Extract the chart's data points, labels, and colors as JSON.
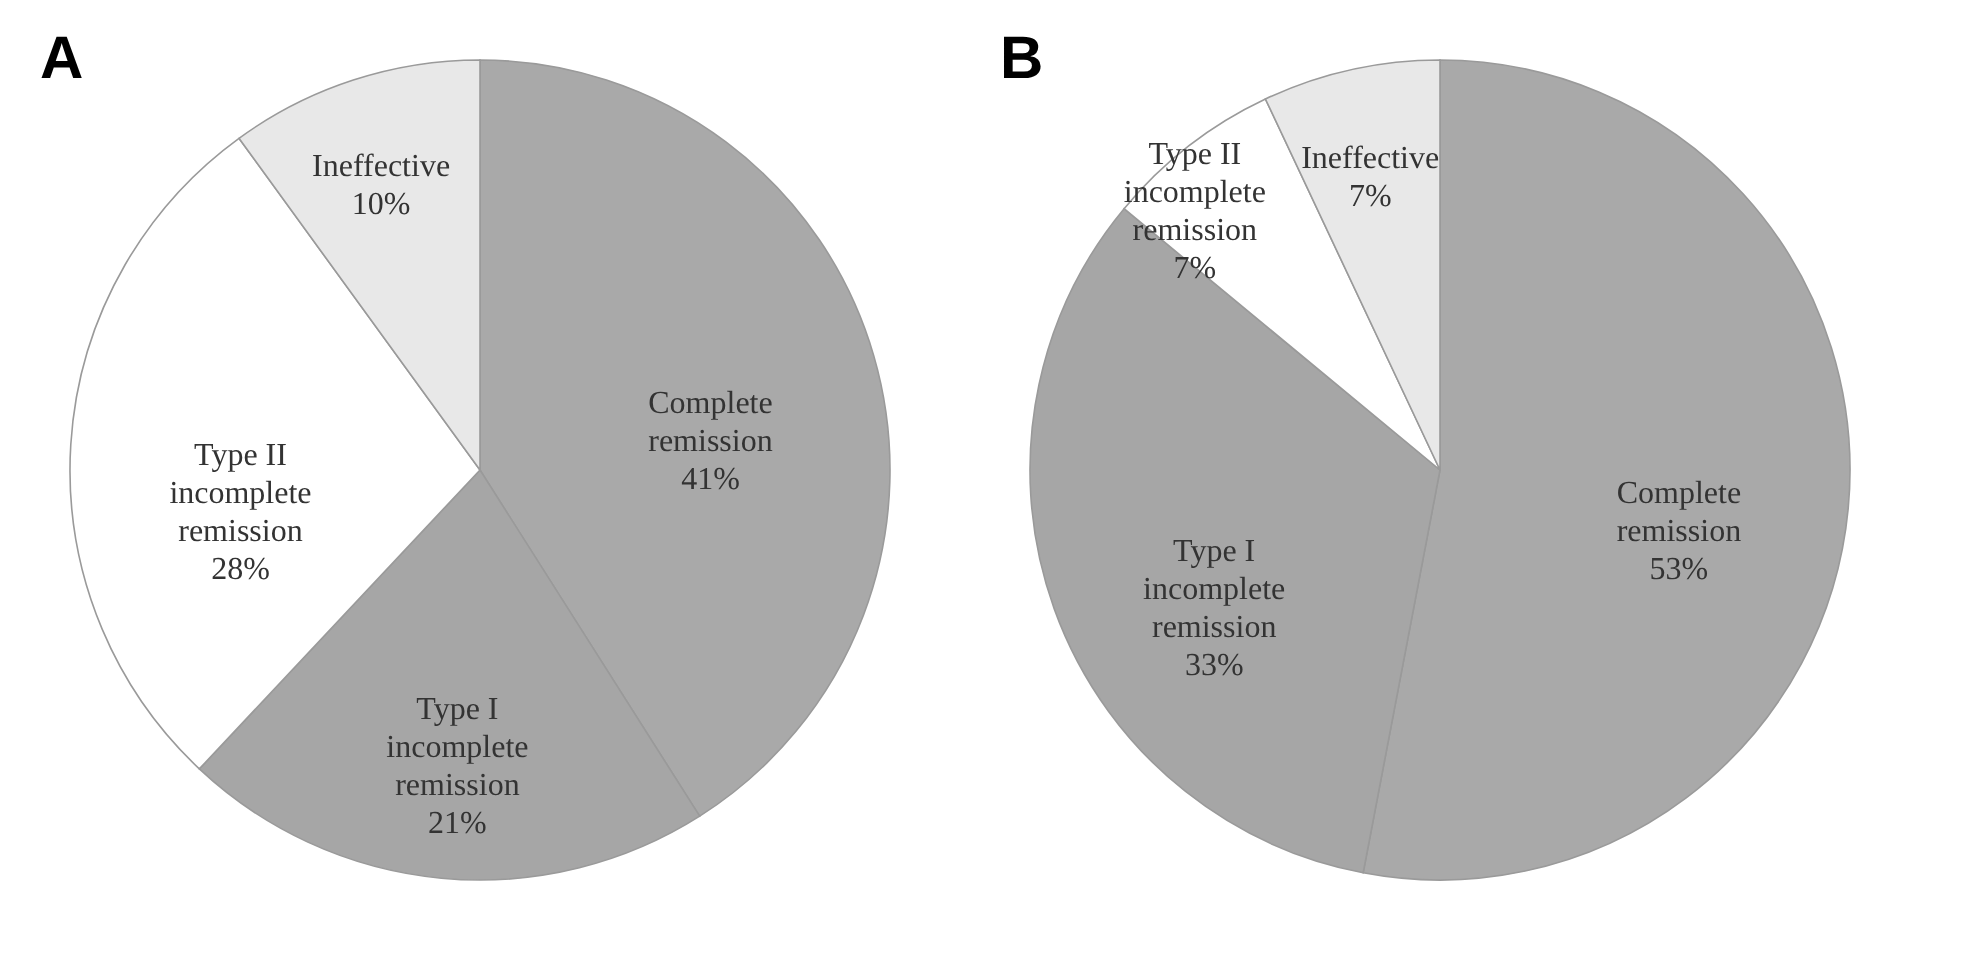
{
  "chart_data": [
    {
      "type": "pie",
      "title": "A",
      "categories": [
        "Complete remission",
        "Type I incomplete remission",
        "Type II incomplete remission",
        "Ineffective"
      ],
      "values": [
        41,
        21,
        28,
        10
      ],
      "colors": [
        "#a9a9a9",
        "#a6a6a6",
        "#ffffff",
        "#e8e8e8"
      ],
      "value_labels": [
        "41%",
        "21%",
        "28%",
        "10%"
      ]
    },
    {
      "type": "pie",
      "title": "B",
      "categories": [
        "Complete remission",
        "Type I incomplete remission",
        "Type II incomplete remission",
        "Ineffective"
      ],
      "values": [
        53,
        33,
        7,
        7
      ],
      "colors": [
        "#a9a9a9",
        "#a6a6a6",
        "#f5f5f5",
        "#e2e2e2"
      ],
      "value_labels": [
        "53%",
        "33%",
        "7%",
        "7%"
      ]
    }
  ]
}
